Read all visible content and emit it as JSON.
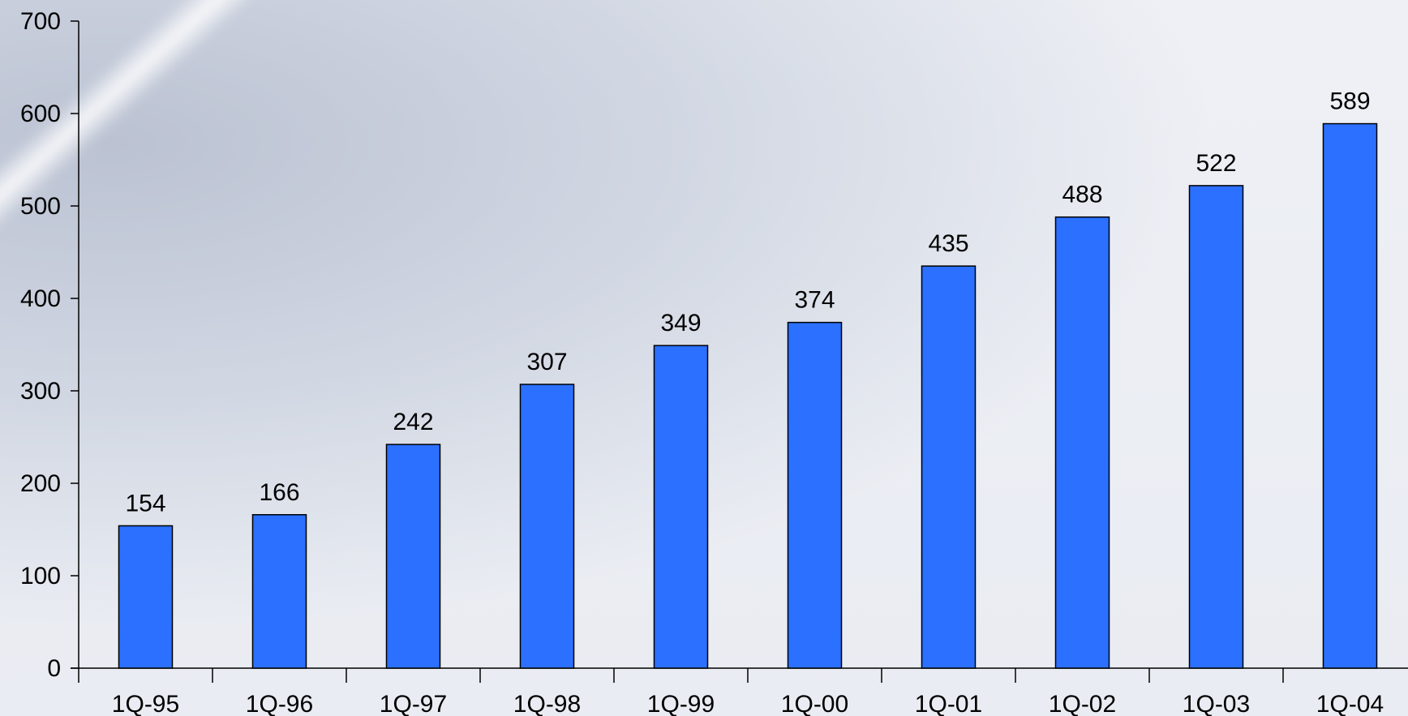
{
  "colors": {
    "bar_fill": "#2b70ff",
    "bar_stroke": "#000000",
    "axis": "#000000"
  },
  "chart_data": {
    "type": "bar",
    "title": "",
    "xlabel": "",
    "ylabel": "",
    "categories": [
      "1Q-95",
      "1Q-96",
      "1Q-97",
      "1Q-98",
      "1Q-99",
      "1Q-00",
      "1Q-01",
      "1Q-02",
      "1Q-03",
      "1Q-04"
    ],
    "values": [
      154,
      166,
      242,
      307,
      349,
      374,
      435,
      488,
      522,
      589
    ],
    "ylim": [
      0,
      700
    ],
    "yticks": [
      0,
      100,
      200,
      300,
      400,
      500,
      600,
      700
    ],
    "grid": false,
    "legend": "none"
  }
}
